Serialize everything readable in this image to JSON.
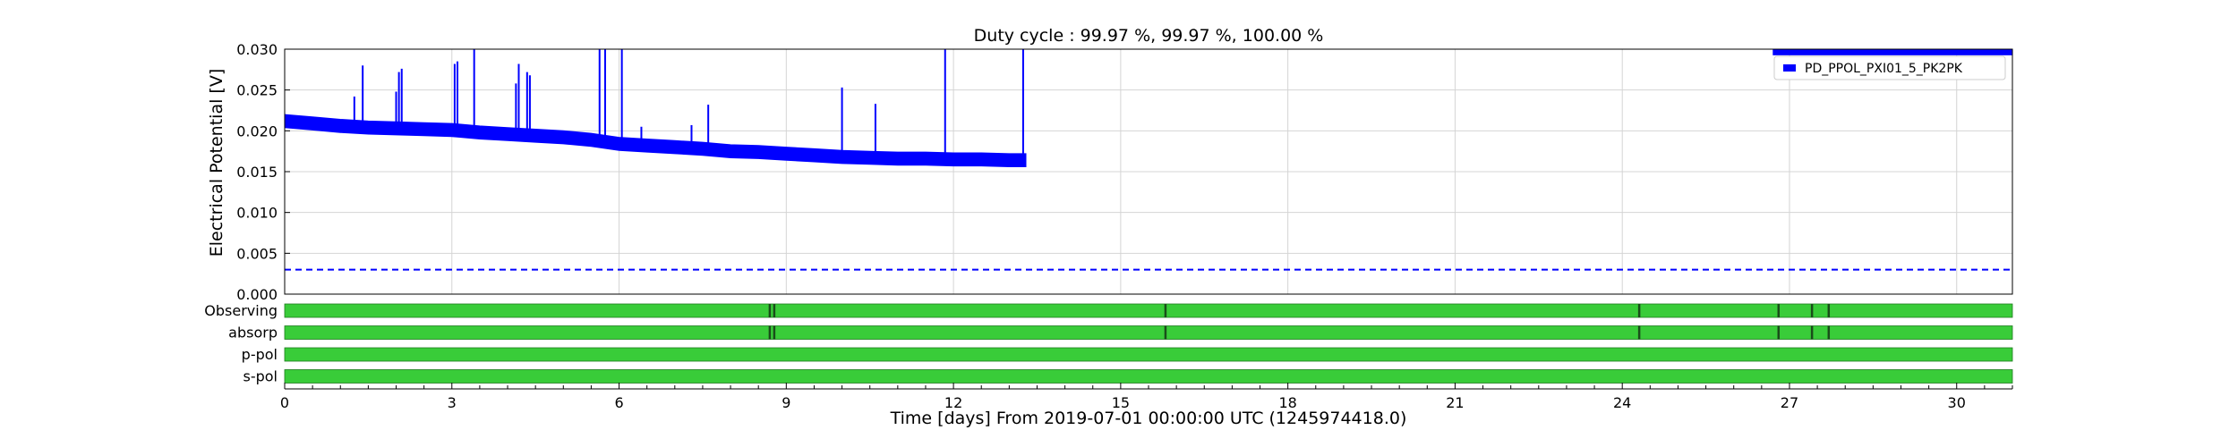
{
  "chart_data": {
    "type": "line",
    "title": "Duty cycle : 99.97 %, 99.97 %, 100.00 %",
    "xlabel": "Time [days] From 2019-07-01 00:00:00 UTC (1245974418.0)",
    "ylabel": "Electrical Potential [V]",
    "xlim": [
      0,
      31
    ],
    "ylim": [
      0,
      0.03
    ],
    "x_ticks": [
      0,
      3,
      6,
      9,
      12,
      15,
      18,
      21,
      24,
      27,
      30
    ],
    "x_tick_labels": [
      "0",
      "3",
      "6",
      "9",
      "12",
      "15",
      "18",
      "21",
      "24",
      "27",
      "30"
    ],
    "y_ticks": [
      0,
      0.005,
      0.01,
      0.015,
      0.02,
      0.025,
      0.03
    ],
    "y_tick_labels": [
      "0.000",
      "0.005",
      "0.010",
      "0.015",
      "0.020",
      "0.025",
      "0.030"
    ],
    "grid": true,
    "legend": {
      "position": "top-right",
      "entries": [
        "PD_PPOL_PXI01_5_PK2PK"
      ]
    },
    "series": [
      {
        "name": "PD_PPOL_PXI01_5_PK2PK",
        "color": "#0000ff",
        "x": [
          0,
          0.5,
          1,
          1.5,
          2,
          2.5,
          3,
          3.5,
          4,
          4.5,
          5,
          5.5,
          6,
          6.5,
          7,
          7.5,
          8,
          8.5,
          9,
          9.5,
          10,
          10.5,
          11,
          11.5,
          12,
          12.5,
          13,
          13.3
        ],
        "y": [
          0.0212,
          0.0209,
          0.0206,
          0.0204,
          0.0203,
          0.0202,
          0.0201,
          0.0198,
          0.0196,
          0.0194,
          0.0192,
          0.0189,
          0.0184,
          0.0182,
          0.018,
          0.0178,
          0.0175,
          0.0174,
          0.0172,
          0.017,
          0.0168,
          0.0167,
          0.0166,
          0.0166,
          0.0165,
          0.0165,
          0.0164,
          0.0164
        ],
        "band": 0.0008,
        "spikes": [
          {
            "x": 1.25,
            "y": 0.0242
          },
          {
            "x": 1.4,
            "y": 0.028
          },
          {
            "x": 2.0,
            "y": 0.0248
          },
          {
            "x": 2.05,
            "y": 0.0272
          },
          {
            "x": 2.1,
            "y": 0.0276
          },
          {
            "x": 3.05,
            "y": 0.0282
          },
          {
            "x": 3.1,
            "y": 0.0285
          },
          {
            "x": 3.4,
            "y": 0.03
          },
          {
            "x": 4.15,
            "y": 0.0258
          },
          {
            "x": 4.2,
            "y": 0.0282
          },
          {
            "x": 4.35,
            "y": 0.0272
          },
          {
            "x": 4.4,
            "y": 0.0268
          },
          {
            "x": 5.65,
            "y": 0.03
          },
          {
            "x": 5.75,
            "y": 0.03
          },
          {
            "x": 6.05,
            "y": 0.03
          },
          {
            "x": 6.4,
            "y": 0.0205
          },
          {
            "x": 7.3,
            "y": 0.0207
          },
          {
            "x": 7.6,
            "y": 0.0232
          },
          {
            "x": 10.0,
            "y": 0.0253
          },
          {
            "x": 10.6,
            "y": 0.0233
          },
          {
            "x": 11.85,
            "y": 0.03
          },
          {
            "x": 13.25,
            "y": 0.03
          }
        ],
        "late_segment": {
          "x_start": 26.7,
          "x_end": 31,
          "y": 0.0298
        }
      }
    ],
    "threshold": {
      "y": 0.003,
      "color": "#0000ff",
      "style": "dashed"
    },
    "state_bars": [
      {
        "label": "Observing",
        "color": "#39cc39",
        "markers": [
          8.7,
          8.78,
          15.8,
          24.3,
          26.8,
          27.4,
          27.7
        ]
      },
      {
        "label": "absorp",
        "color": "#39cc39",
        "markers": [
          8.7,
          8.78,
          15.8,
          24.3,
          26.8,
          27.4,
          27.7
        ]
      },
      {
        "label": "p-pol",
        "color": "#39cc39",
        "markers": []
      },
      {
        "label": "s-pol",
        "color": "#39cc39",
        "markers": []
      }
    ]
  }
}
